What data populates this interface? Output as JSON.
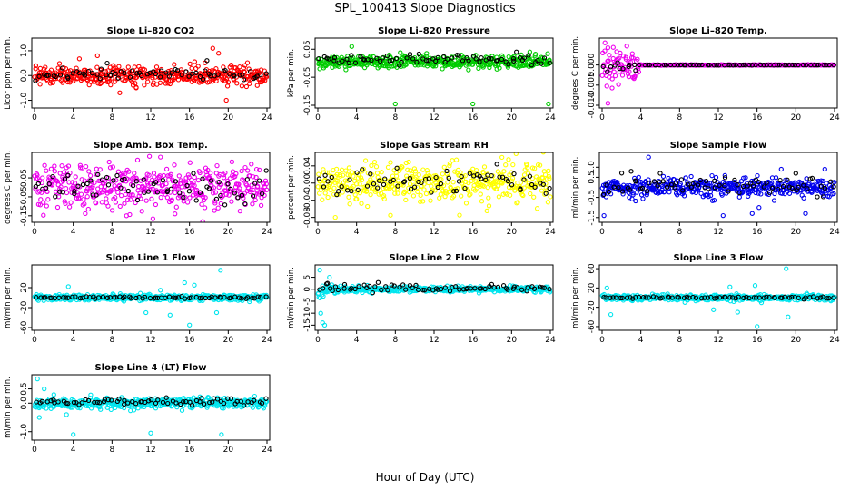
{
  "figure": {
    "title": "SPL_100413  Slope Diagnostics",
    "xlabel": "Hour of Day (UTC)"
  },
  "chart_data": [
    {
      "type": "scatter",
      "title": "Slope Li–820 CO2",
      "ylabel": "Licor ppm per min.",
      "xlim": [
        0,
        24
      ],
      "x_ticks": [
        "0",
        "4",
        "8",
        "12",
        "16",
        "20",
        "24"
      ],
      "ylim": [
        -1.2,
        1.4
      ],
      "y_ticks": [
        "-1.0",
        "0.0",
        "1.0"
      ],
      "y_tick_values": [
        -1.0,
        0.0,
        1.0
      ],
      "series": [
        {
          "color": "#ff0000",
          "center": 0.0,
          "spread": 0.18,
          "outliers": [
            [
              6.5,
              0.8
            ],
            [
              8.8,
              -0.7
            ],
            [
              10.5,
              -0.5
            ],
            [
              18.4,
              1.1
            ],
            [
              19.0,
              0.9
            ],
            [
              19.8,
              -1.0
            ],
            [
              23.0,
              -0.4
            ]
          ]
        },
        {
          "color": "#000000",
          "center": 0.05,
          "spread": 0.12,
          "outliers": [
            [
              7.5,
              0.5
            ],
            [
              17.8,
              0.6
            ]
          ]
        }
      ]
    },
    {
      "type": "scatter",
      "title": "Slope Li–820 Pressure",
      "ylabel": "kPa per min.",
      "xlim": [
        0,
        24
      ],
      "x_ticks": [
        "0",
        "4",
        "8",
        "12",
        "16",
        "20",
        "24"
      ],
      "ylim": [
        -0.15,
        0.08
      ],
      "y_ticks": [
        "-0.15",
        "-0.05",
        "0.05"
      ],
      "y_tick_values": [
        -0.15,
        -0.05,
        0.05
      ],
      "series": [
        {
          "color": "#00cc00",
          "center": 0.005,
          "spread": 0.012,
          "outliers": [
            [
              0.2,
              -0.02
            ],
            [
              1.5,
              -0.015
            ],
            [
              3.5,
              0.06
            ],
            [
              8.0,
              -0.145
            ],
            [
              16.0,
              -0.145
            ],
            [
              23.8,
              -0.145
            ],
            [
              21.0,
              0.03
            ]
          ]
        },
        {
          "color": "#000000",
          "center": 0.012,
          "spread": 0.01,
          "outliers": [
            [
              20.5,
              0.04
            ]
          ]
        }
      ]
    },
    {
      "type": "scatter",
      "title": "Slope Li–820 Temp.",
      "ylabel": "degrees C per min.",
      "xlim": [
        0,
        24
      ],
      "x_ticks": [
        "0",
        "4",
        "8",
        "12",
        "16",
        "20",
        "24"
      ],
      "ylim": [
        -0.01,
        0.006
      ],
      "y_ticks": [
        "-0.010",
        "-0.005",
        "0.000"
      ],
      "y_tick_values": [
        -0.01,
        -0.005,
        0.0
      ],
      "series": [
        {
          "color": "#ee00ee",
          "pattern": "decay",
          "center": 0.0,
          "spread": 0.0024,
          "decay_end": 3.8,
          "outliers": [
            [
              0.6,
              -0.0095
            ],
            [
              0.3,
              0.0055
            ]
          ]
        },
        {
          "color": "#000000",
          "pattern": "decay",
          "center": 0.0,
          "spread": 0.0008,
          "decay_end": 3.5,
          "outliers": []
        }
      ]
    },
    {
      "type": "scatter",
      "title": "Slope Amb. Box Temp.",
      "ylabel": "degrees C per min.",
      "xlim": [
        0,
        24
      ],
      "x_ticks": [
        "0",
        "4",
        "8",
        "12",
        "16",
        "20",
        "24"
      ],
      "ylim": [
        -0.17,
        0.17
      ],
      "y_ticks": [
        "-0.15",
        "-0.05",
        "0.05"
      ],
      "y_tick_values": [
        -0.15,
        -0.05,
        0.05
      ],
      "series": [
        {
          "color": "#ee00ee",
          "center": 0.0,
          "spread": 0.06,
          "outliers": [
            [
              9.5,
              -0.15
            ],
            [
              13.0,
              0.16
            ],
            [
              14.5,
              -0.14
            ]
          ]
        },
        {
          "color": "#000000",
          "center": 0.0,
          "spread": 0.04,
          "outliers": []
        }
      ]
    },
    {
      "type": "scatter",
      "title": "Slope Gas Stream RH",
      "ylabel": "percent per min.",
      "xlim": [
        0,
        24
      ],
      "x_ticks": [
        "0",
        "4",
        "8",
        "12",
        "16",
        "20",
        "24"
      ],
      "ylim": [
        -0.085,
        0.065
      ],
      "y_ticks": [
        "-0.08",
        "-0.04",
        "0.00",
        "0.04"
      ],
      "y_tick_values": [
        -0.08,
        -0.04,
        0.0,
        0.04
      ],
      "series": [
        {
          "color": "#ffff00",
          "center": 0.0,
          "spread": 0.022,
          "outliers": [
            [
              1.8,
              -0.08
            ],
            [
              7.5,
              -0.075
            ],
            [
              19.0,
              0.06
            ]
          ]
        },
        {
          "color": "#000000",
          "center": 0.0,
          "spread": 0.015,
          "outliers": []
        }
      ]
    },
    {
      "type": "scatter",
      "title": "Slope Sample Flow",
      "ylabel": "ml/min per min.",
      "xlim": [
        0,
        24
      ],
      "x_ticks": [
        "0",
        "4",
        "8",
        "12",
        "16",
        "20",
        "24"
      ],
      "ylim": [
        -1.6,
        1.6
      ],
      "y_ticks": [
        "-1.5",
        "-0.5",
        "0.5",
        "1.0"
      ],
      "y_tick_values": [
        -1.5,
        -0.5,
        0.5,
        1.0
      ],
      "series": [
        {
          "color": "#0000ee",
          "center": 0.0,
          "spread": 0.25,
          "outliers": [
            [
              0.2,
              -1.4
            ],
            [
              4.8,
              1.5
            ],
            [
              12.5,
              -1.4
            ],
            [
              15.5,
              -1.3
            ],
            [
              16.2,
              -1.0
            ],
            [
              18.5,
              0.9
            ],
            [
              21.0,
              -1.3
            ],
            [
              23.0,
              0.9
            ]
          ]
        },
        {
          "color": "#000000",
          "center": 0.1,
          "spread": 0.25,
          "outliers": [
            [
              3.0,
              0.8
            ],
            [
              6.0,
              0.7
            ],
            [
              20.0,
              0.7
            ]
          ]
        }
      ]
    },
    {
      "type": "scatter",
      "title": "Slope Line 1 Flow",
      "ylabel": "ml/min per min.",
      "xlim": [
        0,
        24
      ],
      "x_ticks": [
        "0",
        "4",
        "8",
        "12",
        "16",
        "20",
        "24"
      ],
      "ylim": [
        -60,
        60
      ],
      "y_ticks": [
        "-60",
        "-20",
        "20"
      ],
      "y_tick_values": [
        -60,
        -20,
        20
      ],
      "series": [
        {
          "color": "#00e5ee",
          "center": 0.0,
          "spread": 3.0,
          "outliers": [
            [
              3.5,
              22
            ],
            [
              11.5,
              -30
            ],
            [
              13.0,
              15
            ],
            [
              14.0,
              -35
            ],
            [
              15.5,
              30
            ],
            [
              16.0,
              -55
            ],
            [
              18.8,
              -30
            ],
            [
              19.2,
              55
            ],
            [
              16.5,
              25
            ]
          ]
        },
        {
          "color": "#000000",
          "center": 0.0,
          "spread": 1.0,
          "outliers": []
        }
      ]
    },
    {
      "type": "scatter",
      "title": "Slope Line 2 Flow",
      "ylabel": "ml/min per min.",
      "xlim": [
        0,
        24
      ],
      "x_ticks": [
        "0",
        "4",
        "8",
        "12",
        "16",
        "20",
        "24"
      ],
      "ylim": [
        -16,
        9
      ],
      "y_ticks": [
        "-15",
        "-10",
        "-5",
        "0",
        "5"
      ],
      "y_tick_values": [
        -15,
        -10,
        -5,
        0,
        5
      ],
      "series": [
        {
          "color": "#00e5ee",
          "pattern": "decay",
          "center": 0.0,
          "spread": 1.5,
          "decay_end": 24,
          "outliers": [
            [
              0.2,
              8
            ],
            [
              0.5,
              -14
            ],
            [
              0.7,
              -15
            ],
            [
              0.3,
              -10
            ],
            [
              1.2,
              5
            ]
          ]
        },
        {
          "color": "#000000",
          "center": 0.5,
          "spread": 0.8,
          "outliers": [
            [
              1.0,
              2.5
            ]
          ]
        }
      ]
    },
    {
      "type": "scatter",
      "title": "Slope Line 3 Flow",
      "ylabel": "ml/min per min.",
      "xlim": [
        0,
        24
      ],
      "x_ticks": [
        "0",
        "4",
        "8",
        "12",
        "16",
        "20",
        "24"
      ],
      "ylim": [
        -62,
        62
      ],
      "y_ticks": [
        "-60",
        "-20",
        "20",
        "60"
      ],
      "y_tick_values": [
        -60,
        -20,
        20,
        60
      ],
      "series": [
        {
          "color": "#00e5ee",
          "center": 0.0,
          "spread": 3.0,
          "outliers": [
            [
              0.5,
              20
            ],
            [
              0.9,
              -35
            ],
            [
              11.5,
              -25
            ],
            [
              13.2,
              22
            ],
            [
              14.0,
              -30
            ],
            [
              15.8,
              25
            ],
            [
              16.0,
              -60
            ],
            [
              19.0,
              60
            ],
            [
              19.2,
              -40
            ]
          ]
        },
        {
          "color": "#000000",
          "center": 0.0,
          "spread": 1.0,
          "outliers": []
        }
      ]
    },
    {
      "type": "scatter",
      "title": "Slope Line 4 (LT) Flow",
      "ylabel": "ml/min per min.",
      "xlim": [
        0,
        24
      ],
      "x_ticks": [
        "0",
        "4",
        "8",
        "12",
        "16",
        "20",
        "24"
      ],
      "ylim": [
        -1.2,
        0.9
      ],
      "y_ticks": [
        "-1.0",
        "0.0",
        "0.5"
      ],
      "y_tick_values": [
        -1.0,
        0.0,
        0.5
      ],
      "series": [
        {
          "color": "#00e5ee",
          "center": 0.0,
          "spread": 0.09,
          "outliers": [
            [
              0.3,
              0.85
            ],
            [
              0.5,
              -0.5
            ],
            [
              1.0,
              0.5
            ],
            [
              3.3,
              -0.4
            ],
            [
              4.0,
              -1.1
            ],
            [
              12.0,
              -1.05
            ],
            [
              19.3,
              -1.1
            ],
            [
              2.0,
              0.3
            ]
          ]
        },
        {
          "color": "#000000",
          "center": 0.05,
          "spread": 0.07,
          "outliers": []
        }
      ]
    }
  ]
}
